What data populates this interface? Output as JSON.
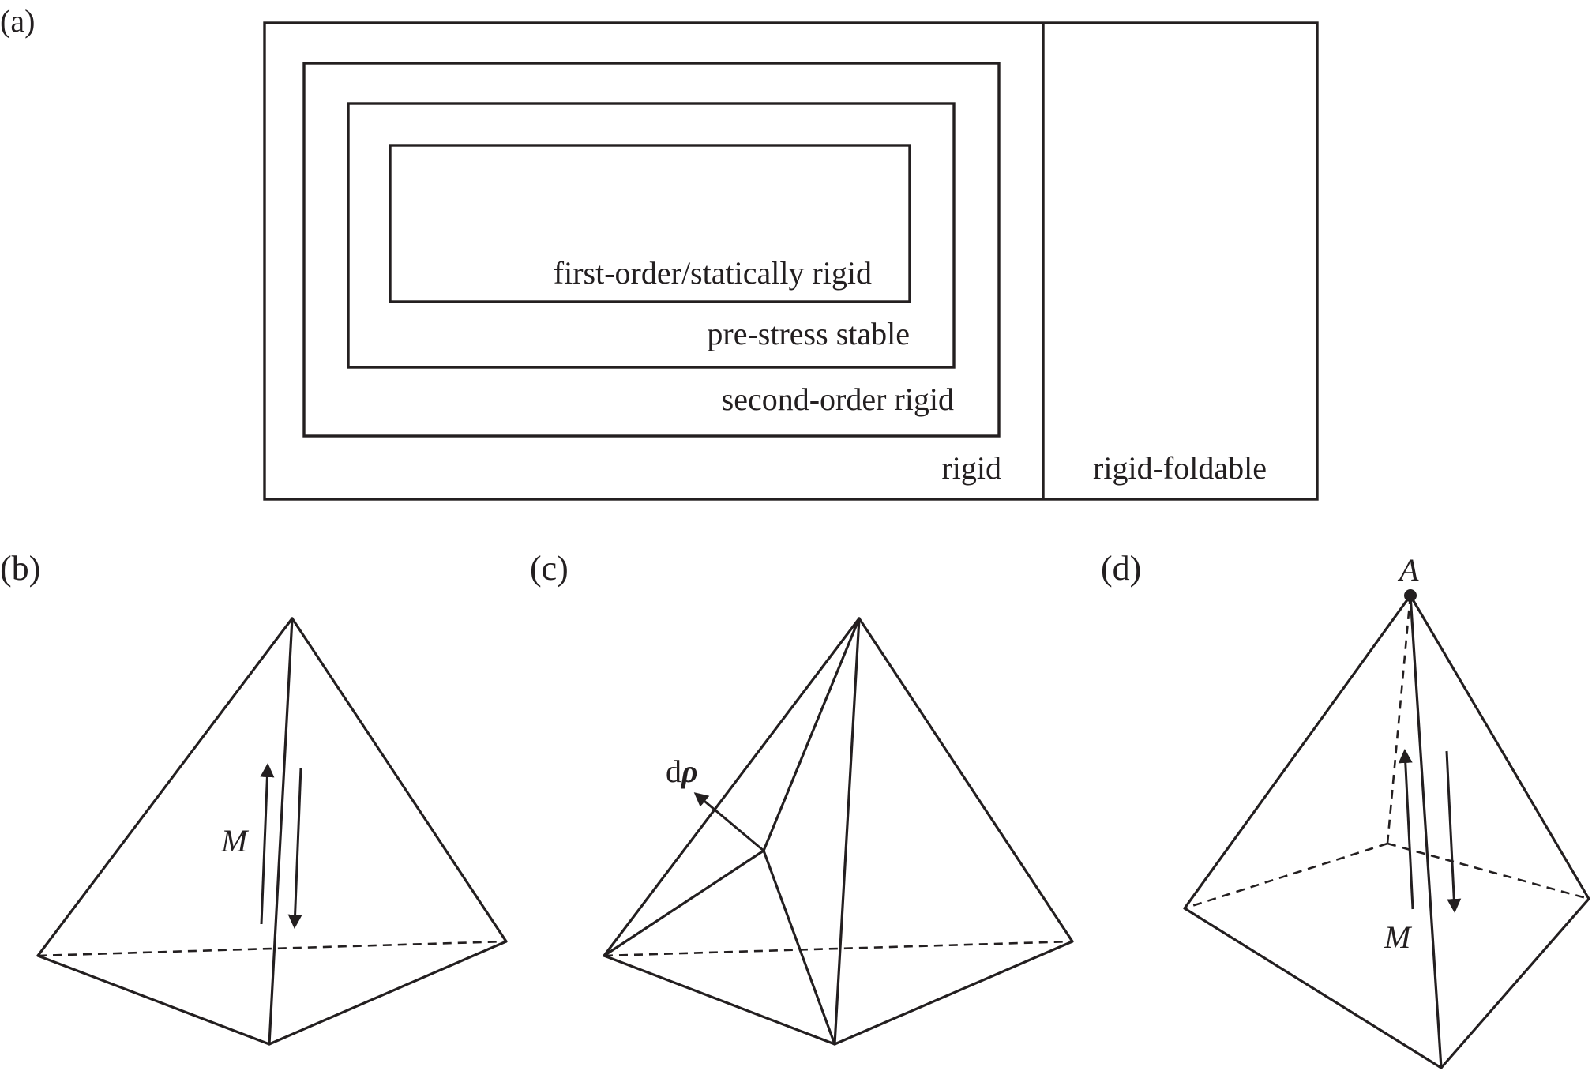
{
  "panels": {
    "a": {
      "label": "(a)",
      "boxes": {
        "first_order": "first-order/statically rigid",
        "prestress": "pre-stress stable",
        "second_order": "second-order rigid",
        "rigid": "rigid",
        "rigid_foldable": "rigid-foldable"
      }
    },
    "b": {
      "label": "(b)",
      "moment_label": "M"
    },
    "c": {
      "label": "(c)",
      "vector_label_d": "d",
      "vector_label_rho": "ρ"
    },
    "d": {
      "label": "(d)",
      "vertex_label": "A",
      "moment_label": "M"
    }
  },
  "colors": {
    "ink": "#231f20",
    "background": "#ffffff"
  }
}
